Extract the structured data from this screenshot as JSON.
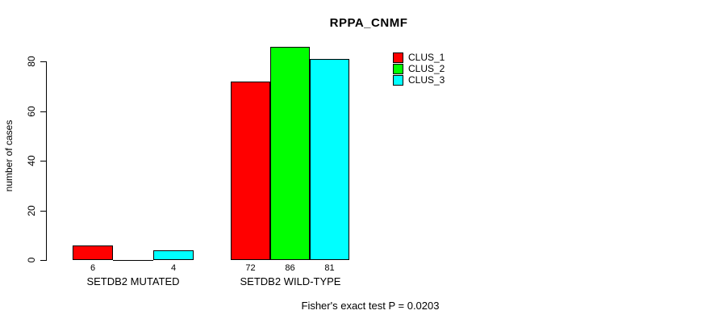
{
  "chart_data": {
    "type": "bar",
    "title": "RPPA_CNMF",
    "ylabel": "number of cases",
    "xlabel": "",
    "categories": [
      "SETDB2 MUTATED",
      "SETDB2 WILD-TYPE"
    ],
    "series": [
      {
        "name": "CLUS_1",
        "color": "#ff0000",
        "values": [
          6,
          72
        ]
      },
      {
        "name": "CLUS_2",
        "color": "#00ff00",
        "values": [
          0,
          86
        ]
      },
      {
        "name": "CLUS_3",
        "color": "#00ffff",
        "values": [
          4,
          81
        ]
      }
    ],
    "value_labels": [
      [
        "6",
        "",
        "4"
      ],
      [
        "72",
        "86",
        "81"
      ]
    ],
    "yticks": [
      0,
      20,
      40,
      60,
      80
    ],
    "ylim": [
      0,
      86
    ],
    "bar_border_color": "#000000",
    "grid": false,
    "legend_position": "top-right",
    "annotation": "Fisher's exact test P = 0.0203"
  }
}
